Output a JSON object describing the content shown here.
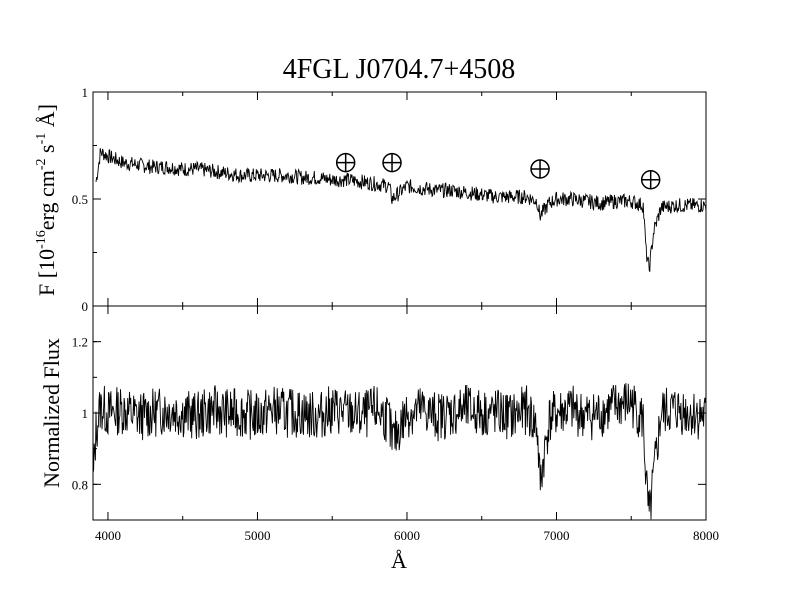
{
  "chart_data": [
    {
      "type": "line",
      "panel": "top",
      "title": "4FGL J0704.7+4508",
      "ylabel": {
        "prefix": "F [10",
        "sup1": "-16",
        "mid": "erg cm",
        "sup2": "-2",
        "mid2": " s",
        "sup3": "-1",
        "end": " Å]"
      },
      "xlim": [
        3900,
        8000
      ],
      "ylim": [
        0,
        1
      ],
      "yticks": [
        0,
        0.5,
        1
      ],
      "ytick_labels": [
        "0",
        "0.5",
        "1"
      ],
      "series": [
        {
          "x": [
            3920,
            3950,
            4000,
            4100,
            4200,
            4300,
            4400,
            4500,
            4600,
            4700,
            4800,
            4900,
            5000,
            5100,
            5200,
            5300,
            5400,
            5500,
            5600,
            5700,
            5800,
            5880,
            5900,
            6000,
            6100,
            6200,
            6300,
            6400,
            6500,
            6600,
            6700,
            6800,
            6870,
            6890,
            6950,
            7000,
            7100,
            7200,
            7300,
            7400,
            7500,
            7580,
            7600,
            7620,
            7650,
            7700,
            7800,
            7900,
            8000
          ],
          "y": [
            0.58,
            0.72,
            0.7,
            0.67,
            0.66,
            0.65,
            0.65,
            0.64,
            0.64,
            0.63,
            0.62,
            0.61,
            0.61,
            0.61,
            0.61,
            0.6,
            0.6,
            0.59,
            0.59,
            0.58,
            0.57,
            0.56,
            0.5,
            0.56,
            0.55,
            0.54,
            0.54,
            0.53,
            0.52,
            0.51,
            0.51,
            0.51,
            0.49,
            0.42,
            0.48,
            0.5,
            0.5,
            0.49,
            0.48,
            0.49,
            0.49,
            0.47,
            0.25,
            0.17,
            0.35,
            0.46,
            0.47,
            0.47,
            0.47
          ]
        }
      ],
      "markers": [
        {
          "symbol": "earth-circle-plus",
          "x": 5590,
          "y": 0.67
        },
        {
          "symbol": "earth-circle-plus",
          "x": 5900,
          "y": 0.67
        },
        {
          "symbol": "earth-circle-plus",
          "x": 6890,
          "y": 0.64
        },
        {
          "symbol": "earth-circle-plus",
          "x": 7630,
          "y": 0.59
        }
      ]
    },
    {
      "type": "line",
      "panel": "bottom",
      "ylabel": "Normalized Flux",
      "xlabel": "Å",
      "xlim": [
        3900,
        8000
      ],
      "ylim": [
        0.7,
        1.3
      ],
      "xticks": [
        4000,
        5000,
        6000,
        7000,
        8000
      ],
      "xtick_labels": [
        "4000",
        "5000",
        "6000",
        "7000",
        "8000"
      ],
      "yticks": [
        0.8,
        1,
        1.2
      ],
      "ytick_labels": [
        "0.8",
        "1",
        "1.2"
      ],
      "series": [
        {
          "x": [
            3900,
            3920,
            3950,
            4000,
            4100,
            4200,
            4300,
            4400,
            4500,
            4600,
            4700,
            4800,
            4900,
            5000,
            5100,
            5200,
            5300,
            5400,
            5500,
            5600,
            5700,
            5800,
            5880,
            5900,
            6000,
            6100,
            6200,
            6300,
            6400,
            6500,
            6600,
            6700,
            6800,
            6870,
            6890,
            6950,
            7000,
            7100,
            7200,
            7300,
            7400,
            7500,
            7580,
            7600,
            7620,
            7650,
            7700,
            7800,
            7900,
            8000
          ],
          "y": [
            0.8,
            0.95,
            1.02,
            1.0,
            1.01,
            0.99,
            1.0,
            1.01,
            1.0,
            0.99,
            1.01,
            1.0,
            1.0,
            0.99,
            1.01,
            1.0,
            1.0,
            0.99,
            1.01,
            1.0,
            0.99,
            1.01,
            0.98,
            0.92,
            1.0,
            1.01,
            0.99,
            1.0,
            1.01,
            1.0,
            1.0,
            0.99,
            1.01,
            0.96,
            0.8,
            0.98,
            1.0,
            1.01,
            0.99,
            1.0,
            1.02,
            1.03,
            0.98,
            0.8,
            0.7,
            0.82,
            1.0,
            1.01,
            1.0,
            0.99
          ]
        }
      ]
    }
  ]
}
